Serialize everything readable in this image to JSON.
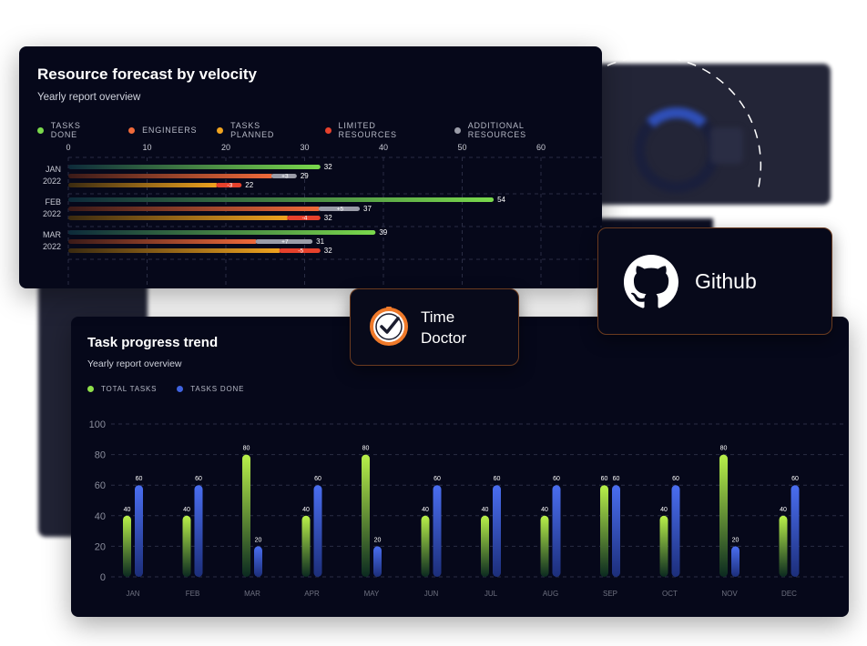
{
  "forecast": {
    "title": "Resource forecast by velocity",
    "subtitle": "Yearly report overview",
    "legend": [
      {
        "label": "TASKS DONE",
        "color": "#7ad94c"
      },
      {
        "label": "ENGINEERS",
        "color": "#f06a3a"
      },
      {
        "label": "TASKS PLANNED",
        "color": "#f0a31f"
      },
      {
        "label": "LIMITED RESOURCES",
        "color": "#e6412c"
      },
      {
        "label": "ADDITIONAL RESOURCES",
        "color": "#9a9ca8"
      }
    ]
  },
  "trend": {
    "title": "Task progress trend",
    "subtitle": "Yearly report overview",
    "legend": [
      {
        "label": "TOTAL TASKS",
        "color": "#8fe04a"
      },
      {
        "label": "TASKS DONE",
        "color": "#3f63e0"
      }
    ]
  },
  "integrations": {
    "time_doctor_line1": "Time",
    "time_doctor_line2": "Doctor",
    "github": "Github"
  },
  "chart_data": [
    {
      "type": "bar",
      "orientation": "horizontal",
      "title": "Resource forecast by velocity",
      "subtitle": "Yearly report overview",
      "xlim": [
        0,
        60
      ],
      "x_ticks": [
        0,
        10,
        20,
        30,
        40,
        50,
        60
      ],
      "grid": true,
      "groups": [
        {
          "label1": "JAN",
          "label2": "2022",
          "tasks_done": 32,
          "engineers": 29,
          "engineers_delta": "+3",
          "tasks_planned": 22,
          "planned_delta": "-3"
        },
        {
          "label1": "FEB",
          "label2": "2022",
          "tasks_done": 54,
          "engineers": 37,
          "engineers_delta": "+5",
          "tasks_planned": 32,
          "planned_delta": "-4"
        },
        {
          "label1": "MAR",
          "label2": "2022",
          "tasks_done": 39,
          "engineers": 31,
          "engineers_delta": "+7",
          "tasks_planned": 32,
          "planned_delta": "-5"
        }
      ],
      "legend_labels": [
        "TASKS DONE",
        "ENGINEERS",
        "TASKS PLANNED",
        "LIMITED RESOURCES",
        "ADDITIONAL RESOURCES"
      ]
    },
    {
      "type": "bar",
      "title": "Task progress trend",
      "subtitle": "Yearly report overview",
      "categories": [
        "JAN",
        "FEB",
        "MAR",
        "APR",
        "MAY",
        "JUN",
        "JUL",
        "AUG",
        "SEP",
        "OCT",
        "NOV",
        "DEC"
      ],
      "series": [
        {
          "name": "TOTAL TASKS",
          "values": [
            40,
            40,
            80,
            40,
            80,
            40,
            40,
            40,
            60,
            40,
            80,
            40
          ]
        },
        {
          "name": "TASKS DONE",
          "values": [
            60,
            60,
            20,
            60,
            20,
            60,
            60,
            60,
            60,
            60,
            20,
            60
          ]
        }
      ],
      "ylim": [
        0,
        100
      ],
      "y_ticks": [
        0,
        20,
        40,
        60,
        80,
        100
      ],
      "grid": true,
      "legend": "top-left"
    }
  ]
}
